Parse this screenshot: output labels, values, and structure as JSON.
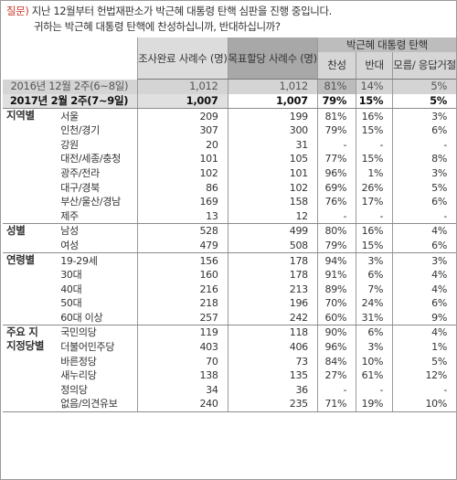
{
  "question": {
    "label": "질문)",
    "line1": "지난 12월부터 헌법재판소가 박근혜 대통령 탄핵 심판을 진행 중입니다.",
    "line2": "귀하는 박근혜 대통령 탄핵에 찬성하십니까, 반대하십니까?"
  },
  "header": {
    "completed": "조사완료 사례수 (명)",
    "target": "목표할당 사례수 (명)",
    "group_title": "박근혜 대통령 탄핵",
    "favor": "찬성",
    "oppose": "반대",
    "unknown": "모름/ 응답거절"
  },
  "surveys": [
    {
      "label": "2016년 12월 2주(6~8일)",
      "completed": "1,012",
      "target": "1,012",
      "favor": "81%",
      "oppose": "14%",
      "unknown": "5%"
    },
    {
      "label": "2017년 2월 2주(7~9일)",
      "completed": "1,007",
      "target": "1,007",
      "favor": "79%",
      "oppose": "15%",
      "unknown": "5%"
    }
  ],
  "groups": [
    {
      "name": "지역별",
      "rows": [
        {
          "label": "서울",
          "completed": "209",
          "target": "199",
          "favor": "81%",
          "oppose": "16%",
          "unknown": "3%"
        },
        {
          "label": "인천/경기",
          "completed": "307",
          "target": "300",
          "favor": "79%",
          "oppose": "15%",
          "unknown": "6%"
        },
        {
          "label": "강원",
          "completed": "20",
          "target": "31",
          "favor": "-",
          "oppose": "-",
          "unknown": "-"
        },
        {
          "label": "대전/세종/충청",
          "completed": "101",
          "target": "105",
          "favor": "77%",
          "oppose": "15%",
          "unknown": "8%"
        },
        {
          "label": "광주/전라",
          "completed": "102",
          "target": "101",
          "favor": "96%",
          "oppose": "1%",
          "unknown": "3%"
        },
        {
          "label": "대구/경북",
          "completed": "86",
          "target": "102",
          "favor": "69%",
          "oppose": "26%",
          "unknown": "5%"
        },
        {
          "label": "부산/울산/경남",
          "completed": "169",
          "target": "158",
          "favor": "76%",
          "oppose": "17%",
          "unknown": "6%"
        },
        {
          "label": "제주",
          "completed": "13",
          "target": "12",
          "favor": "-",
          "oppose": "-",
          "unknown": "-"
        }
      ]
    },
    {
      "name": "성별",
      "rows": [
        {
          "label": "남성",
          "completed": "528",
          "target": "499",
          "favor": "80%",
          "oppose": "16%",
          "unknown": "4%"
        },
        {
          "label": "여성",
          "completed": "479",
          "target": "508",
          "favor": "79%",
          "oppose": "15%",
          "unknown": "6%"
        }
      ]
    },
    {
      "name": "연령별",
      "rows": [
        {
          "label": "19-29세",
          "completed": "156",
          "target": "178",
          "favor": "94%",
          "oppose": "3%",
          "unknown": "3%"
        },
        {
          "label": "30대",
          "completed": "160",
          "target": "178",
          "favor": "91%",
          "oppose": "6%",
          "unknown": "4%"
        },
        {
          "label": "40대",
          "completed": "216",
          "target": "213",
          "favor": "89%",
          "oppose": "7%",
          "unknown": "4%"
        },
        {
          "label": "50대",
          "completed": "218",
          "target": "196",
          "favor": "70%",
          "oppose": "24%",
          "unknown": "6%"
        },
        {
          "label": "60대 이상",
          "completed": "257",
          "target": "242",
          "favor": "60%",
          "oppose": "31%",
          "unknown": "9%"
        }
      ]
    },
    {
      "name": "주요 지지정당별",
      "rows": [
        {
          "label": "국민의당",
          "completed": "119",
          "target": "118",
          "favor": "90%",
          "oppose": "6%",
          "unknown": "4%"
        },
        {
          "label": "더불어민주당",
          "completed": "403",
          "target": "406",
          "favor": "96%",
          "oppose": "3%",
          "unknown": "1%"
        },
        {
          "label": "바른정당",
          "completed": "70",
          "target": "73",
          "favor": "84%",
          "oppose": "10%",
          "unknown": "5%"
        },
        {
          "label": "새누리당",
          "completed": "138",
          "target": "135",
          "favor": "27%",
          "oppose": "61%",
          "unknown": "12%"
        },
        {
          "label": "정의당",
          "completed": "34",
          "target": "36",
          "favor": "-",
          "oppose": "-",
          "unknown": "-"
        },
        {
          "label": "없음/의견유보",
          "completed": "240",
          "target": "235",
          "favor": "71%",
          "oppose": "19%",
          "unknown": "10%"
        }
      ]
    }
  ]
}
